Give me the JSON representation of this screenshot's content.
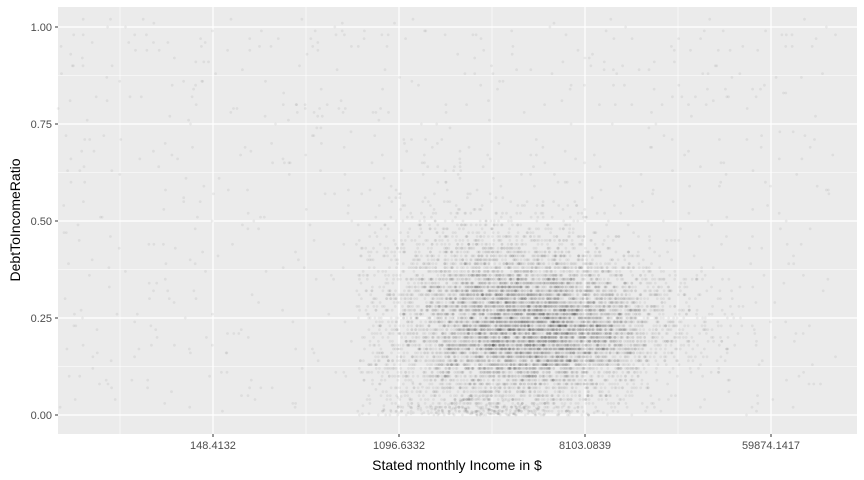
{
  "chart_data": {
    "type": "scatter",
    "title": "",
    "xlabel": "Stated monthly Income in $",
    "ylabel": "DebtToIncomeRatio",
    "x_scale": "log",
    "x_ticks": [
      {
        "value": 148.4132,
        "label": "148.4132"
      },
      {
        "value": 1096.6332,
        "label": "1096.6332"
      },
      {
        "value": 8103.0839,
        "label": "8103.0839"
      },
      {
        "value": 59874.1417,
        "label": "59874.1417"
      }
    ],
    "y_ticks": [
      {
        "value": 0.0,
        "label": "0.00"
      },
      {
        "value": 0.25,
        "label": "0.25"
      },
      {
        "value": 0.5,
        "label": "0.50"
      },
      {
        "value": 0.75,
        "label": "0.75"
      },
      {
        "value": 1.0,
        "label": "1.00"
      }
    ],
    "xlim": [
      9,
      190000
    ],
    "ylim": [
      -0.04,
      1.05
    ],
    "grid": true,
    "legend": "none",
    "panel_background": "#ebebeb",
    "grid_color": "#ffffff",
    "point_color": "#000000",
    "point_opacity": 0.06,
    "density_summary": [
      {
        "income": 4000,
        "debt_to_income_mode": 0.22,
        "note": "densest band roughly 2,500–10,000"
      },
      {
        "income_range": [
          900,
          60000
        ],
        "debt_to_income_range": [
          0.0,
          1.0
        ]
      }
    ]
  }
}
